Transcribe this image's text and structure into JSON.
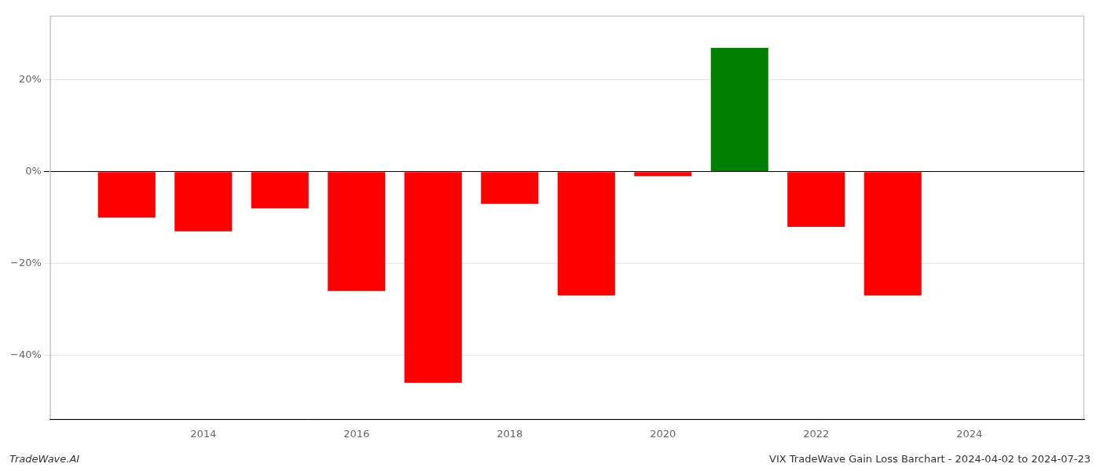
{
  "chart_data": {
    "type": "bar",
    "x": [
      2013,
      2014,
      2015,
      2016,
      2017,
      2018,
      2019,
      2020,
      2021,
      2022,
      2023
    ],
    "values": [
      -0.1,
      -0.13,
      -0.08,
      -0.26,
      -0.46,
      -0.07,
      -0.27,
      -0.01,
      0.27,
      -0.12,
      -0.27
    ],
    "colors": [
      "#ff0000",
      "#ff0000",
      "#ff0000",
      "#ff0000",
      "#ff0000",
      "#ff0000",
      "#ff0000",
      "#ff0000",
      "#008000",
      "#ff0000",
      "#ff0000"
    ],
    "xlim": [
      2012.0,
      2025.5
    ],
    "xticks": [
      2014,
      2016,
      2018,
      2020,
      2022,
      2024
    ],
    "ylim": [
      -0.54,
      0.34
    ],
    "yticks": [
      {
        "value": 0.2,
        "label": "20%"
      },
      {
        "value": 0.0,
        "label": "0%"
      },
      {
        "value": -0.2,
        "label": "−20%"
      },
      {
        "value": -0.4,
        "label": "−40%"
      }
    ],
    "grid": true,
    "annotations": [
      "TradeWave.AI",
      "VIX TradeWave Gain Loss Barchart - 2024-04-02 to 2024-07-23"
    ]
  }
}
